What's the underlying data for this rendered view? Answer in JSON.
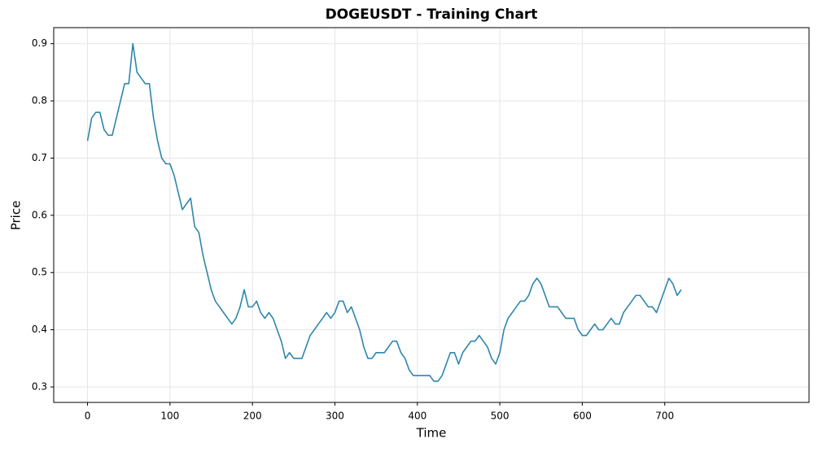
{
  "chart_data": {
    "type": "line",
    "title": "DOGEUSDT - Training Chart",
    "xlabel": "Time",
    "ylabel": "Price",
    "x": [
      0,
      5,
      10,
      15,
      20,
      25,
      30,
      35,
      40,
      45,
      50,
      55,
      60,
      65,
      70,
      75,
      80,
      85,
      90,
      95,
      100,
      105,
      110,
      115,
      120,
      125,
      130,
      135,
      140,
      145,
      150,
      155,
      160,
      165,
      170,
      175,
      180,
      185,
      190,
      195,
      200,
      205,
      210,
      215,
      220,
      225,
      230,
      235,
      240,
      245,
      250,
      255,
      260,
      265,
      270,
      275,
      280,
      285,
      290,
      295,
      300,
      305,
      310,
      315,
      320,
      325,
      330,
      335,
      340,
      345,
      350,
      355,
      360,
      365,
      370,
      375,
      380,
      385,
      390,
      395,
      400,
      405,
      410,
      415,
      420,
      425,
      430,
      435,
      440,
      445,
      450,
      455,
      460,
      465,
      470,
      475,
      480,
      485,
      490,
      495,
      500,
      505,
      510,
      515,
      520,
      525,
      530,
      535,
      540,
      545,
      550,
      555,
      560,
      565,
      570,
      575,
      580,
      585,
      590,
      595,
      600,
      605,
      610,
      615,
      620,
      625,
      630,
      635,
      640,
      645,
      650,
      655,
      660,
      665,
      670,
      675,
      680,
      685,
      690,
      695,
      700,
      705,
      710,
      715,
      720
    ],
    "series": [
      {
        "name": "Price",
        "color": "#2e86ab",
        "values": [
          0.73,
          0.77,
          0.78,
          0.78,
          0.75,
          0.74,
          0.74,
          0.77,
          0.8,
          0.83,
          0.83,
          0.9,
          0.85,
          0.84,
          0.83,
          0.83,
          0.77,
          0.73,
          0.7,
          0.69,
          0.69,
          0.67,
          0.64,
          0.61,
          0.62,
          0.63,
          0.58,
          0.57,
          0.53,
          0.5,
          0.47,
          0.45,
          0.44,
          0.43,
          0.42,
          0.41,
          0.42,
          0.44,
          0.47,
          0.44,
          0.44,
          0.45,
          0.43,
          0.42,
          0.43,
          0.42,
          0.4,
          0.38,
          0.35,
          0.36,
          0.35,
          0.35,
          0.35,
          0.37,
          0.39,
          0.4,
          0.41,
          0.42,
          0.43,
          0.42,
          0.43,
          0.45,
          0.45,
          0.43,
          0.44,
          0.42,
          0.4,
          0.37,
          0.35,
          0.35,
          0.36,
          0.36,
          0.36,
          0.37,
          0.38,
          0.38,
          0.36,
          0.35,
          0.33,
          0.32,
          0.32,
          0.32,
          0.32,
          0.32,
          0.31,
          0.31,
          0.32,
          0.34,
          0.36,
          0.36,
          0.34,
          0.36,
          0.37,
          0.38,
          0.38,
          0.39,
          0.38,
          0.37,
          0.35,
          0.34,
          0.36,
          0.4,
          0.42,
          0.43,
          0.44,
          0.45,
          0.45,
          0.46,
          0.48,
          0.49,
          0.48,
          0.46,
          0.44,
          0.44,
          0.44,
          0.43,
          0.42,
          0.42,
          0.42,
          0.4,
          0.39,
          0.39,
          0.4,
          0.41,
          0.4,
          0.4,
          0.41,
          0.42,
          0.41,
          0.41,
          0.43,
          0.44,
          0.45,
          0.46,
          0.46,
          0.45,
          0.44,
          0.44,
          0.43,
          0.45,
          0.47,
          0.49,
          0.48,
          0.46,
          0.47
        ]
      }
    ],
    "xlim": [
      -41,
      875
    ],
    "ylim": [
      0.273,
      0.928
    ],
    "xticks": [
      0,
      100,
      200,
      300,
      400,
      500,
      600,
      700
    ],
    "yticks": [
      0.3,
      0.4,
      0.5,
      0.6,
      0.7,
      0.8,
      0.9
    ],
    "grid": true
  }
}
